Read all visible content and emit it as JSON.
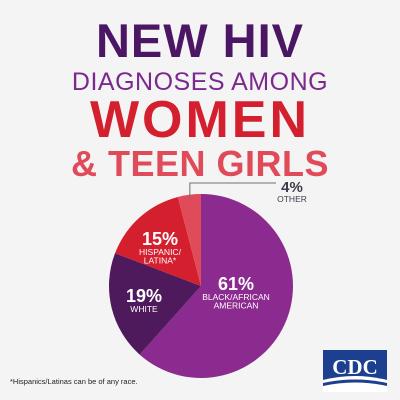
{
  "title": {
    "line1": "NEW HIV",
    "line2": "DIAGNOSES AMONG",
    "line3": "WOMEN",
    "line4": "& TEEN GIRLS"
  },
  "chart_data": {
    "type": "pie",
    "start_angle_deg": 0,
    "direction": "clockwise",
    "slices": [
      {
        "label_lines": [
          "BLACK/AFRICAN",
          "AMERICAN"
        ],
        "value": 61,
        "value_text": "61%",
        "color": "#8b2a8f"
      },
      {
        "label_lines": [
          "WHITE"
        ],
        "value": 19,
        "value_text": "19%",
        "color": "#4e1a5c"
      },
      {
        "label_lines": [
          "HISPANIC/",
          "LATINA*"
        ],
        "value": 15,
        "value_text": "15%",
        "color": "#d41f2f"
      },
      {
        "label_lines": [
          "OTHER"
        ],
        "value": 4,
        "value_text": "4%",
        "color": "#e04b5a"
      }
    ]
  },
  "footnote": "*Hispanics/Latinas can be of any race.",
  "logo": {
    "text": "CDC",
    "color": "#1c3f8f"
  }
}
